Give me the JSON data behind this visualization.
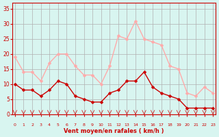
{
  "hours": [
    0,
    1,
    2,
    3,
    4,
    5,
    6,
    7,
    8,
    9,
    10,
    11,
    12,
    13,
    14,
    15,
    16,
    17,
    18,
    19,
    20,
    21,
    22,
    23
  ],
  "wind_avg": [
    10,
    8,
    8,
    6,
    8,
    11,
    10,
    6,
    5,
    4,
    4,
    7,
    8,
    11,
    11,
    14,
    9,
    7,
    6,
    5,
    2,
    2,
    2,
    2
  ],
  "wind_gust": [
    19,
    14,
    14,
    11,
    17,
    20,
    20,
    16,
    13,
    13,
    10,
    16,
    26,
    25,
    31,
    25,
    24,
    23,
    16,
    15,
    7,
    6,
    9,
    7
  ],
  "avg_color": "#cc0000",
  "gust_color": "#ffaaaa",
  "bg_color": "#d8f5f0",
  "grid_color": "#b0b0b0",
  "label_color": "#cc0000",
  "xlabel": "Vent moyen/en rafales ( km/h )",
  "ytick_vals": [
    0,
    5,
    10,
    15,
    20,
    25,
    30,
    35
  ],
  "ylim": [
    0,
    37
  ],
  "xlim": [
    -0.3,
    23.3
  ]
}
